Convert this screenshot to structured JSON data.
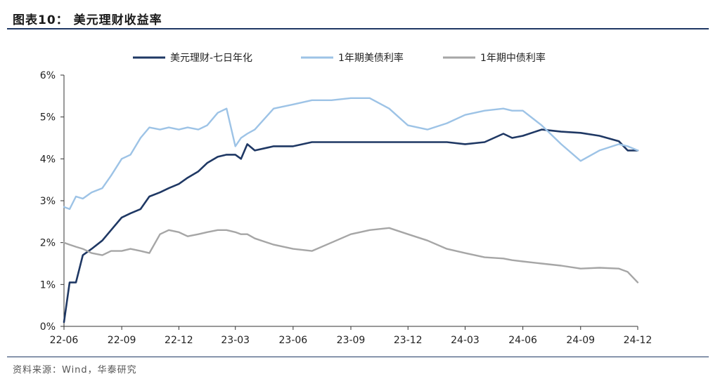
{
  "header": {
    "title": "图表10： 美元理财收益率"
  },
  "footer": {
    "source": "资料来源：Wind，华泰研究"
  },
  "colors": {
    "usd_wmp": "#1f3864",
    "us_treasury_1y": "#9dc3e6",
    "cn_bond_1y": "#a6a6a6",
    "accent": "#1f3864"
  },
  "chart_data": {
    "type": "line",
    "title": "",
    "xlabel": "",
    "ylabel": "",
    "ylim": [
      0,
      6
    ],
    "yticks": [
      "0%",
      "1%",
      "2%",
      "3%",
      "4%",
      "5%",
      "6%"
    ],
    "xticks": [
      "22-06",
      "22-09",
      "22-12",
      "23-03",
      "23-06",
      "23-09",
      "23-12",
      "24-03",
      "24-06",
      "24-09",
      "24-12"
    ],
    "xlim": [
      "2022-06",
      "2024-12"
    ],
    "grid": false,
    "legend_position": "top",
    "series": [
      {
        "name": "美元理财-七日年化",
        "x": [
          "2022-06",
          "2022-06-10",
          "2022-06-20",
          "2022-07",
          "2022-07-15",
          "2022-08",
          "2022-08-15",
          "2022-09",
          "2022-09-15",
          "2022-10",
          "2022-10-15",
          "2022-11",
          "2022-11-15",
          "2022-12",
          "2022-12-15",
          "2023-01",
          "2023-01-15",
          "2023-02",
          "2023-02-15",
          "2023-03",
          "2023-03-10",
          "2023-03-20",
          "2023-04",
          "2023-05",
          "2023-06",
          "2023-07",
          "2023-08",
          "2023-09",
          "2023-10",
          "2023-11",
          "2023-12",
          "2024-01",
          "2024-02",
          "2024-03",
          "2024-04",
          "2024-05",
          "2024-05-15",
          "2024-06",
          "2024-07",
          "2024-08",
          "2024-09",
          "2024-10",
          "2024-11",
          "2024-11-15",
          "2024-12"
        ],
        "values": [
          0.1,
          1.05,
          1.05,
          1.7,
          1.85,
          2.05,
          2.3,
          2.6,
          2.7,
          2.8,
          3.1,
          3.2,
          3.3,
          3.4,
          3.55,
          3.7,
          3.9,
          4.05,
          4.1,
          4.1,
          4.0,
          4.35,
          4.2,
          4.3,
          4.3,
          4.4,
          4.4,
          4.4,
          4.4,
          4.4,
          4.4,
          4.4,
          4.4,
          4.35,
          4.4,
          4.6,
          4.5,
          4.55,
          4.7,
          4.65,
          4.62,
          4.55,
          4.42,
          4.2,
          4.2
        ]
      },
      {
        "name": "1年期美债利率",
        "x": [
          "2022-06",
          "2022-06-10",
          "2022-06-20",
          "2022-07",
          "2022-07-15",
          "2022-08",
          "2022-08-15",
          "2022-09",
          "2022-09-15",
          "2022-10",
          "2022-10-15",
          "2022-11",
          "2022-11-15",
          "2022-12",
          "2022-12-15",
          "2023-01",
          "2023-01-15",
          "2023-02",
          "2023-02-15",
          "2023-03",
          "2023-03-10",
          "2023-03-20",
          "2023-04",
          "2023-05",
          "2023-06",
          "2023-07",
          "2023-08",
          "2023-09",
          "2023-10",
          "2023-11",
          "2023-12",
          "2024-01",
          "2024-02",
          "2024-03",
          "2024-04",
          "2024-05",
          "2024-05-15",
          "2024-06",
          "2024-07",
          "2024-08",
          "2024-09",
          "2024-10",
          "2024-11",
          "2024-11-15",
          "2024-12"
        ],
        "values": [
          2.85,
          2.8,
          3.1,
          3.05,
          3.2,
          3.3,
          3.6,
          4.0,
          4.1,
          4.5,
          4.75,
          4.7,
          4.75,
          4.7,
          4.75,
          4.7,
          4.8,
          5.1,
          5.2,
          4.3,
          4.5,
          4.6,
          4.7,
          5.2,
          5.3,
          5.4,
          5.4,
          5.45,
          5.45,
          5.2,
          4.8,
          4.7,
          4.85,
          5.05,
          5.15,
          5.2,
          5.15,
          5.15,
          4.8,
          4.35,
          3.95,
          4.2,
          4.35,
          4.3,
          4.2
        ]
      },
      {
        "name": "1年期中债利率",
        "x": [
          "2022-06",
          "2022-06-10",
          "2022-06-20",
          "2022-07",
          "2022-07-15",
          "2022-08",
          "2022-08-15",
          "2022-09",
          "2022-09-15",
          "2022-10",
          "2022-10-15",
          "2022-11",
          "2022-11-15",
          "2022-12",
          "2022-12-15",
          "2023-01",
          "2023-01-15",
          "2023-02",
          "2023-02-15",
          "2023-03",
          "2023-03-10",
          "2023-03-20",
          "2023-04",
          "2023-05",
          "2023-06",
          "2023-07",
          "2023-08",
          "2023-09",
          "2023-10",
          "2023-11",
          "2023-12",
          "2024-01",
          "2024-02",
          "2024-03",
          "2024-04",
          "2024-05",
          "2024-05-15",
          "2024-06",
          "2024-07",
          "2024-08",
          "2024-09",
          "2024-10",
          "2024-11",
          "2024-11-15",
          "2024-12"
        ],
        "values": [
          2.0,
          1.95,
          1.9,
          1.85,
          1.75,
          1.7,
          1.8,
          1.8,
          1.85,
          1.8,
          1.75,
          2.2,
          2.3,
          2.25,
          2.15,
          2.2,
          2.25,
          2.3,
          2.3,
          2.25,
          2.2,
          2.2,
          2.1,
          1.95,
          1.85,
          1.8,
          2.0,
          2.2,
          2.3,
          2.35,
          2.2,
          2.05,
          1.85,
          1.75,
          1.65,
          1.62,
          1.58,
          1.55,
          1.5,
          1.45,
          1.38,
          1.4,
          1.38,
          1.3,
          1.05
        ]
      }
    ]
  }
}
